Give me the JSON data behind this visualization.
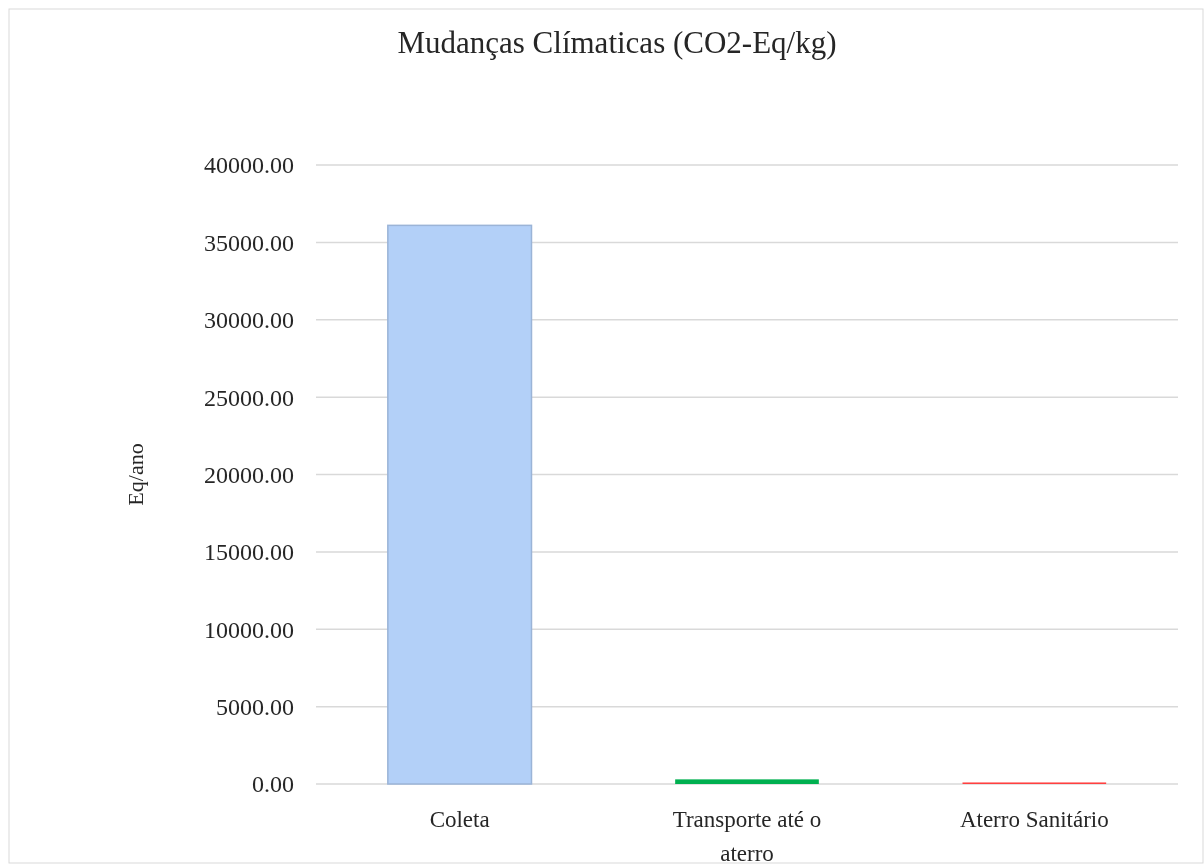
{
  "chart_data": {
    "type": "bar",
    "title": "Mudanças Clímaticas (CO2-Eq/kg)",
    "ylabel": "Eq/ano",
    "categories": [
      "Coleta",
      "Transporte até o aterro",
      "Aterro Sanitário"
    ],
    "values": [
      36100,
      300,
      100
    ],
    "colors": [
      "#b3d0f8",
      "#00b050",
      "#ff4040"
    ],
    "ylim": [
      0,
      40000
    ],
    "yticks": [
      {
        "value": 0,
        "label": "0.00"
      },
      {
        "value": 5000,
        "label": "5000.00"
      },
      {
        "value": 10000,
        "label": "10000.00"
      },
      {
        "value": 15000,
        "label": "15000.00"
      },
      {
        "value": 20000,
        "label": "20000.00"
      },
      {
        "value": 25000,
        "label": "25000.00"
      },
      {
        "value": 30000,
        "label": "30000.00"
      },
      {
        "value": 35000,
        "label": "35000.00"
      },
      {
        "value": 40000,
        "label": "40000.00"
      }
    ],
    "grid": "y"
  }
}
